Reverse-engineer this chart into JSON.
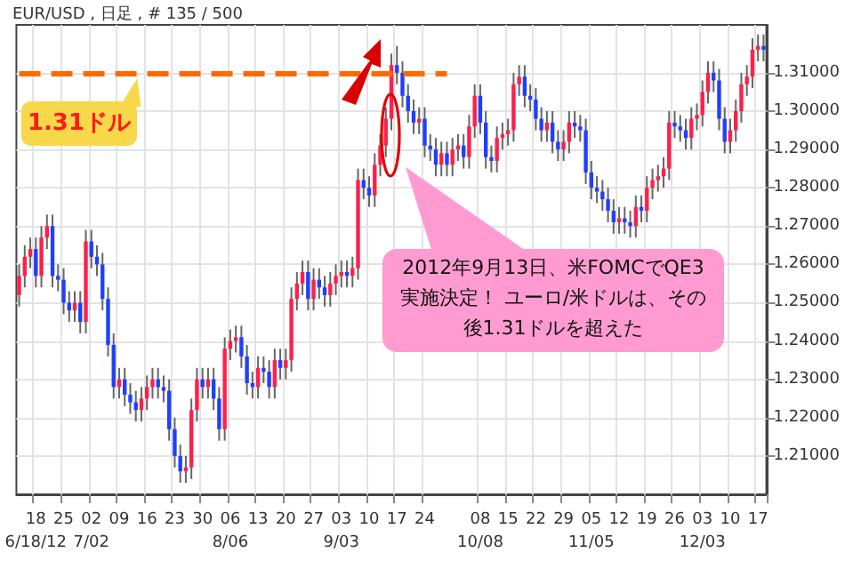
{
  "chart_data": {
    "type": "candlestick",
    "title": "EUR/USD , 日足 , # 135 / 500",
    "categories": [
      null,
      null,
      null,
      "18\n6/18/12",
      null,
      null,
      null,
      null,
      "25",
      null,
      null,
      null,
      null,
      "02\n7/02",
      null,
      null,
      null,
      null,
      "09",
      null,
      null,
      null,
      null,
      "16",
      null,
      null,
      null,
      null,
      "23",
      null,
      null,
      null,
      null,
      "30",
      null,
      null,
      null,
      null,
      "06\n8/06",
      null,
      null,
      null,
      null,
      "13",
      null,
      null,
      null,
      null,
      "20",
      null,
      null,
      null,
      null,
      "27",
      null,
      null,
      null,
      null,
      "03\n9/03",
      null,
      null,
      null,
      null,
      "10",
      null,
      null,
      null,
      null,
      "17",
      null,
      null,
      null,
      null,
      "24",
      null,
      null,
      null,
      null,
      null,
      null,
      null,
      null,
      null,
      "08\n10/08",
      null,
      null,
      null,
      null,
      "15",
      null,
      null,
      null,
      null,
      "22",
      null,
      null,
      null,
      null,
      "29",
      null,
      null,
      null,
      null,
      "05\n11/05",
      null,
      null,
      null,
      null,
      "12",
      null,
      null,
      null,
      null,
      "19",
      null,
      null,
      null,
      null,
      "26",
      null,
      null,
      null,
      null,
      "03\n12/03",
      null,
      null,
      null,
      null,
      "10",
      null,
      null,
      null,
      null,
      "17",
      null
    ],
    "ohlc": [
      [
        1.252,
        1.26,
        1.249,
        1.257
      ],
      [
        1.257,
        1.265,
        1.254,
        1.262
      ],
      [
        1.262,
        1.267,
        1.259,
        1.264
      ],
      [
        1.264,
        1.267,
        1.254,
        1.257
      ],
      [
        1.257,
        1.27,
        1.254,
        1.267
      ],
      [
        1.267,
        1.273,
        1.264,
        1.27
      ],
      [
        1.27,
        1.273,
        1.254,
        1.257
      ],
      [
        1.257,
        1.26,
        1.253,
        1.256
      ],
      [
        1.256,
        1.259,
        1.247,
        1.25
      ],
      [
        1.25,
        1.253,
        1.245,
        1.248
      ],
      [
        1.248,
        1.253,
        1.245,
        1.25
      ],
      [
        1.25,
        1.253,
        1.242,
        1.245
      ],
      [
        1.245,
        1.269,
        1.242,
        1.266
      ],
      [
        1.266,
        1.269,
        1.259,
        1.262
      ],
      [
        1.262,
        1.265,
        1.257,
        1.26
      ],
      [
        1.26,
        1.263,
        1.248,
        1.251
      ],
      [
        1.251,
        1.254,
        1.236,
        1.239
      ],
      [
        1.239,
        1.242,
        1.225,
        1.228
      ],
      [
        1.228,
        1.233,
        1.225,
        1.23
      ],
      [
        1.23,
        1.233,
        1.223,
        1.226
      ],
      [
        1.226,
        1.229,
        1.221,
        1.224
      ],
      [
        1.224,
        1.227,
        1.219,
        1.222
      ],
      [
        1.222,
        1.228,
        1.219,
        1.225
      ],
      [
        1.225,
        1.231,
        1.222,
        1.228
      ],
      [
        1.228,
        1.233,
        1.225,
        1.23
      ],
      [
        1.23,
        1.233,
        1.225,
        1.228
      ],
      [
        1.228,
        1.231,
        1.224,
        1.227
      ],
      [
        1.227,
        1.23,
        1.214,
        1.217
      ],
      [
        1.217,
        1.22,
        1.207,
        1.21
      ],
      [
        1.21,
        1.213,
        1.203,
        1.206
      ],
      [
        1.206,
        1.21,
        1.203,
        1.207
      ],
      [
        1.207,
        1.225,
        1.204,
        1.222
      ],
      [
        1.222,
        1.233,
        1.219,
        1.23
      ],
      [
        1.23,
        1.233,
        1.225,
        1.228
      ],
      [
        1.228,
        1.233,
        1.225,
        1.23
      ],
      [
        1.23,
        1.233,
        1.222,
        1.225
      ],
      [
        1.225,
        1.228,
        1.214,
        1.217
      ],
      [
        1.217,
        1.241,
        1.214,
        1.238
      ],
      [
        1.238,
        1.243,
        1.235,
        1.24
      ],
      [
        1.24,
        1.244,
        1.237,
        1.241
      ],
      [
        1.241,
        1.244,
        1.233,
        1.236
      ],
      [
        1.236,
        1.239,
        1.226,
        1.229
      ],
      [
        1.229,
        1.232,
        1.225,
        1.228
      ],
      [
        1.228,
        1.236,
        1.225,
        1.233
      ],
      [
        1.233,
        1.236,
        1.229,
        1.232
      ],
      [
        1.232,
        1.235,
        1.225,
        1.228
      ],
      [
        1.228,
        1.238,
        1.225,
        1.235
      ],
      [
        1.235,
        1.238,
        1.23,
        1.233
      ],
      [
        1.233,
        1.238,
        1.23,
        1.235
      ],
      [
        1.235,
        1.254,
        1.232,
        1.251
      ],
      [
        1.251,
        1.258,
        1.248,
        1.255
      ],
      [
        1.255,
        1.261,
        1.252,
        1.258
      ],
      [
        1.258,
        1.261,
        1.248,
        1.251
      ],
      [
        1.251,
        1.259,
        1.248,
        1.256
      ],
      [
        1.256,
        1.259,
        1.251,
        1.254
      ],
      [
        1.254,
        1.257,
        1.249,
        1.252
      ],
      [
        1.252,
        1.258,
        1.249,
        1.255
      ],
      [
        1.255,
        1.26,
        1.252,
        1.257
      ],
      [
        1.257,
        1.261,
        1.254,
        1.258
      ],
      [
        1.258,
        1.261,
        1.254,
        1.257
      ],
      [
        1.257,
        1.262,
        1.254,
        1.259
      ],
      [
        1.259,
        1.285,
        1.256,
        1.282
      ],
      [
        1.282,
        1.285,
        1.277,
        1.28
      ],
      [
        1.28,
        1.283,
        1.275,
        1.278
      ],
      [
        1.278,
        1.289,
        1.275,
        1.286
      ],
      [
        1.286,
        1.294,
        1.283,
        1.291
      ],
      [
        1.291,
        1.301,
        1.288,
        1.298
      ],
      [
        1.298,
        1.315,
        1.295,
        1.312
      ],
      [
        1.312,
        1.317,
        1.307,
        1.31
      ],
      [
        1.31,
        1.313,
        1.301,
        1.304
      ],
      [
        1.304,
        1.307,
        1.297,
        1.3
      ],
      [
        1.3,
        1.303,
        1.294,
        1.297
      ],
      [
        1.297,
        1.301,
        1.294,
        1.298
      ],
      [
        1.298,
        1.301,
        1.288,
        1.291
      ],
      [
        1.291,
        1.294,
        1.287,
        1.29
      ],
      [
        1.29,
        1.293,
        1.283,
        1.286
      ],
      [
        1.286,
        1.292,
        1.283,
        1.289
      ],
      [
        1.289,
        1.292,
        1.283,
        1.286
      ],
      [
        1.286,
        1.293,
        1.283,
        1.29
      ],
      [
        1.29,
        1.294,
        1.287,
        1.291
      ],
      [
        1.291,
        1.294,
        1.285,
        1.288
      ],
      [
        1.288,
        1.299,
        1.285,
        1.296
      ],
      [
        1.296,
        1.307,
        1.293,
        1.304
      ],
      [
        1.304,
        1.307,
        1.294,
        1.297
      ],
      [
        1.297,
        1.3,
        1.285,
        1.288
      ],
      [
        1.288,
        1.291,
        1.284,
        1.287
      ],
      [
        1.287,
        1.296,
        1.284,
        1.293
      ],
      [
        1.293,
        1.297,
        1.29,
        1.294
      ],
      [
        1.294,
        1.298,
        1.291,
        1.295
      ],
      [
        1.295,
        1.31,
        1.292,
        1.307
      ],
      [
        1.307,
        1.312,
        1.304,
        1.309
      ],
      [
        1.309,
        1.312,
        1.301,
        1.304
      ],
      [
        1.304,
        1.307,
        1.3,
        1.303
      ],
      [
        1.303,
        1.306,
        1.295,
        1.298
      ],
      [
        1.298,
        1.301,
        1.292,
        1.295
      ],
      [
        1.295,
        1.3,
        1.292,
        1.297
      ],
      [
        1.297,
        1.3,
        1.289,
        1.292
      ],
      [
        1.292,
        1.295,
        1.287,
        1.29
      ],
      [
        1.29,
        1.295,
        1.287,
        1.292
      ],
      [
        1.292,
        1.3,
        1.289,
        1.297
      ],
      [
        1.297,
        1.3,
        1.293,
        1.296
      ],
      [
        1.296,
        1.299,
        1.292,
        1.295
      ],
      [
        1.295,
        1.298,
        1.281,
        1.284
      ],
      [
        1.284,
        1.287,
        1.277,
        1.28
      ],
      [
        1.28,
        1.283,
        1.276,
        1.279
      ],
      [
        1.279,
        1.282,
        1.274,
        1.277
      ],
      [
        1.277,
        1.28,
        1.271,
        1.274
      ],
      [
        1.274,
        1.277,
        1.268,
        1.271
      ],
      [
        1.271,
        1.275,
        1.268,
        1.272
      ],
      [
        1.272,
        1.275,
        1.268,
        1.271
      ],
      [
        1.271,
        1.274,
        1.267,
        1.27
      ],
      [
        1.27,
        1.278,
        1.267,
        1.275
      ],
      [
        1.275,
        1.278,
        1.271,
        1.274
      ],
      [
        1.274,
        1.283,
        1.271,
        1.28
      ],
      [
        1.28,
        1.285,
        1.277,
        1.282
      ],
      [
        1.282,
        1.286,
        1.279,
        1.283
      ],
      [
        1.283,
        1.288,
        1.28,
        1.285
      ],
      [
        1.285,
        1.3,
        1.282,
        1.297
      ],
      [
        1.297,
        1.3,
        1.293,
        1.296
      ],
      [
        1.296,
        1.299,
        1.292,
        1.295
      ],
      [
        1.295,
        1.298,
        1.29,
        1.293
      ],
      [
        1.293,
        1.301,
        1.29,
        1.298
      ],
      [
        1.298,
        1.302,
        1.295,
        1.299
      ],
      [
        1.299,
        1.308,
        1.296,
        1.305
      ],
      [
        1.305,
        1.313,
        1.302,
        1.31
      ],
      [
        1.31,
        1.313,
        1.305,
        1.308
      ],
      [
        1.308,
        1.311,
        1.295,
        1.298
      ],
      [
        1.298,
        1.301,
        1.289,
        1.292
      ],
      [
        1.292,
        1.298,
        1.289,
        1.295
      ],
      [
        1.295,
        1.303,
        1.292,
        1.3
      ],
      [
        1.3,
        1.31,
        1.297,
        1.307
      ],
      [
        1.307,
        1.312,
        1.304,
        1.309
      ],
      [
        1.309,
        1.319,
        1.306,
        1.316
      ],
      [
        1.316,
        1.32,
        1.313,
        1.317
      ],
      [
        1.317,
        1.32,
        1.313,
        1.316
      ]
    ],
    "ylim": [
      1.2,
      1.3225
    ],
    "yticks": [
      {
        "value": 1.21,
        "label": "1.21000"
      },
      {
        "value": 1.22,
        "label": "1.22000"
      },
      {
        "value": 1.23,
        "label": "1.23000"
      },
      {
        "value": 1.24,
        "label": "1.24000"
      },
      {
        "value": 1.25,
        "label": "1.25000"
      },
      {
        "value": 1.26,
        "label": "1.26000"
      },
      {
        "value": 1.27,
        "label": "1.27000"
      },
      {
        "value": 1.28,
        "label": "1.28000"
      },
      {
        "value": 1.29,
        "label": "1.29000"
      },
      {
        "value": 1.3,
        "label": "1.30000"
      },
      {
        "value": 1.31,
        "label": "1.31000"
      }
    ],
    "grid": true,
    "ref_lines": [
      {
        "axis": "y",
        "value": 1.31,
        "label": "1.31ドル",
        "color": "#ff6a00",
        "line_style": "dashed"
      }
    ],
    "annotations": [
      "2012年9月13日、米FOMCでQE3実施決定！ ユーロ/米ドルは、その後1.31ドルを超えた"
    ]
  }
}
